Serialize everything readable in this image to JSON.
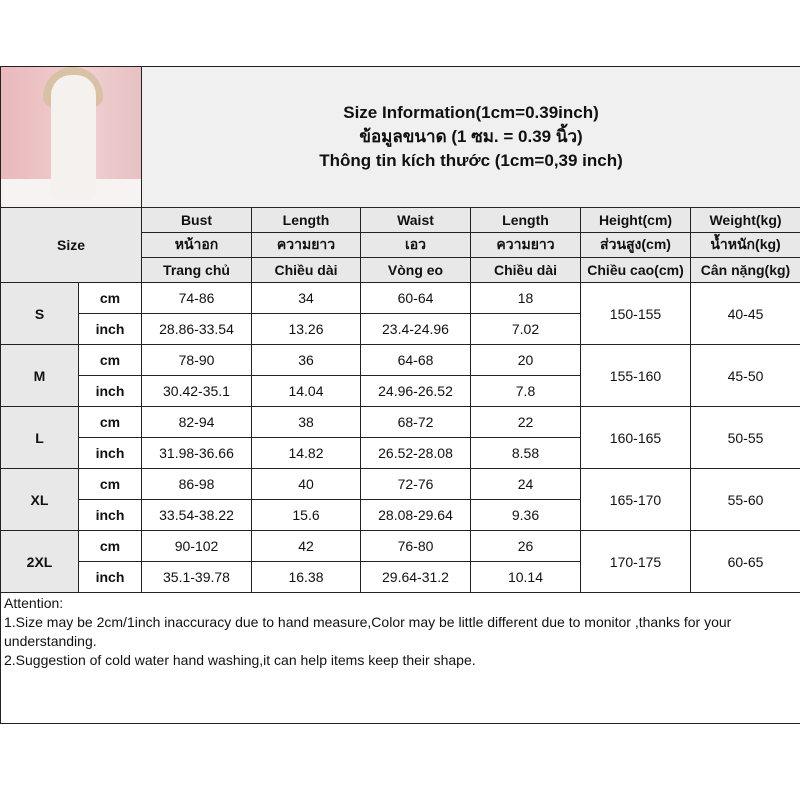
{
  "title": [
    "Size Information(1cm=0.39inch)",
    "ข้อมูลขนาด (1 ซม. = 0.39 นิ้ว)",
    "Thông tin kích thước (1cm=0,39 inch)"
  ],
  "size_label": "Size",
  "headers": [
    [
      "Bust",
      "หน้าอก",
      "Trang chủ"
    ],
    [
      "Length",
      "ความยาว",
      "Chiều dài"
    ],
    [
      "Waist",
      "เอว",
      "Vòng eo"
    ],
    [
      "Length",
      "ความยาว",
      "Chiều dài"
    ],
    [
      "Height(cm)",
      "ส่วนสูง(cm)",
      "Chiều cao(cm)"
    ],
    [
      "Weight(kg)",
      "น้ำหนัก(kg)",
      "Cân nặng(kg)"
    ]
  ],
  "units": [
    "cm",
    "inch"
  ],
  "rows": [
    {
      "size": "S",
      "cm": [
        "74-86",
        "34",
        "60-64",
        "18"
      ],
      "inch": [
        "28.86-33.54",
        "13.26",
        "23.4-24.96",
        "7.02"
      ],
      "height": "150-155",
      "weight": "40-45"
    },
    {
      "size": "M",
      "cm": [
        "78-90",
        "36",
        "64-68",
        "20"
      ],
      "inch": [
        "30.42-35.1",
        "14.04",
        "24.96-26.52",
        "7.8"
      ],
      "height": "155-160",
      "weight": "45-50"
    },
    {
      "size": "L",
      "cm": [
        "82-94",
        "38",
        "68-72",
        "22"
      ],
      "inch": [
        "31.98-36.66",
        "14.82",
        "26.52-28.08",
        "8.58"
      ],
      "height": "160-165",
      "weight": "50-55"
    },
    {
      "size": "XL",
      "cm": [
        "86-98",
        "40",
        "72-76",
        "24"
      ],
      "inch": [
        "33.54-38.22",
        "15.6",
        "28.08-29.64",
        "9.36"
      ],
      "height": "165-170",
      "weight": "55-60"
    },
    {
      "size": "2XL",
      "cm": [
        "90-102",
        "42",
        "76-80",
        "26"
      ],
      "inch": [
        "35.1-39.78",
        "16.38",
        "29.64-31.2",
        "10.14"
      ],
      "height": "170-175",
      "weight": "60-65"
    }
  ],
  "notes": [
    "Attention:",
    "1.Size may be 2cm/1inch inaccuracy due to hand measure,Color may be little different due to monitor ,thanks for your understanding.",
    "2.Suggestion of cold water hand washing,it can help items keep their shape."
  ]
}
